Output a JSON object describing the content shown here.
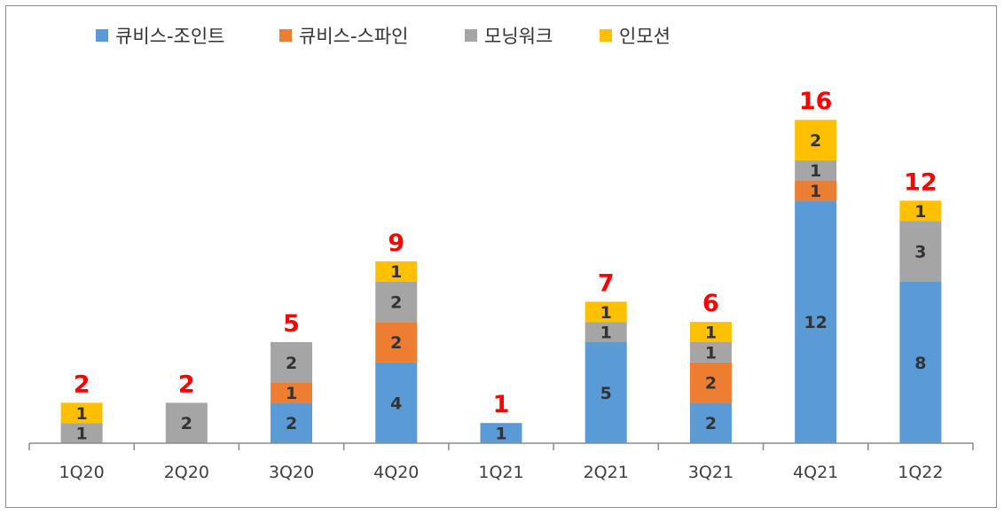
{
  "chart_data": {
    "type": "bar",
    "stacked": true,
    "categories": [
      "1Q20",
      "2Q20",
      "3Q20",
      "4Q20",
      "1Q21",
      "2Q21",
      "3Q21",
      "4Q21",
      "1Q22"
    ],
    "series": [
      {
        "name": "큐비스-조인트",
        "color": "#5b9bd5",
        "values": [
          0,
          0,
          2,
          4,
          1,
          5,
          2,
          12,
          8
        ]
      },
      {
        "name": "큐비스-스파인",
        "color": "#ed7d31",
        "values": [
          0,
          0,
          1,
          2,
          0,
          0,
          2,
          1,
          0
        ]
      },
      {
        "name": "모닝워크",
        "color": "#a5a5a5",
        "values": [
          1,
          2,
          2,
          2,
          0,
          1,
          1,
          1,
          3
        ]
      },
      {
        "name": "인모션",
        "color": "#ffc000",
        "values": [
          1,
          0,
          0,
          1,
          0,
          1,
          1,
          2,
          1
        ]
      }
    ],
    "totals": [
      2,
      2,
      5,
      9,
      1,
      7,
      6,
      16,
      12
    ],
    "total_color": "#ff0000",
    "legend_position": "top",
    "grid": false,
    "ylim": [
      0,
      18
    ],
    "title": "",
    "xlabel": "",
    "ylabel": ""
  }
}
